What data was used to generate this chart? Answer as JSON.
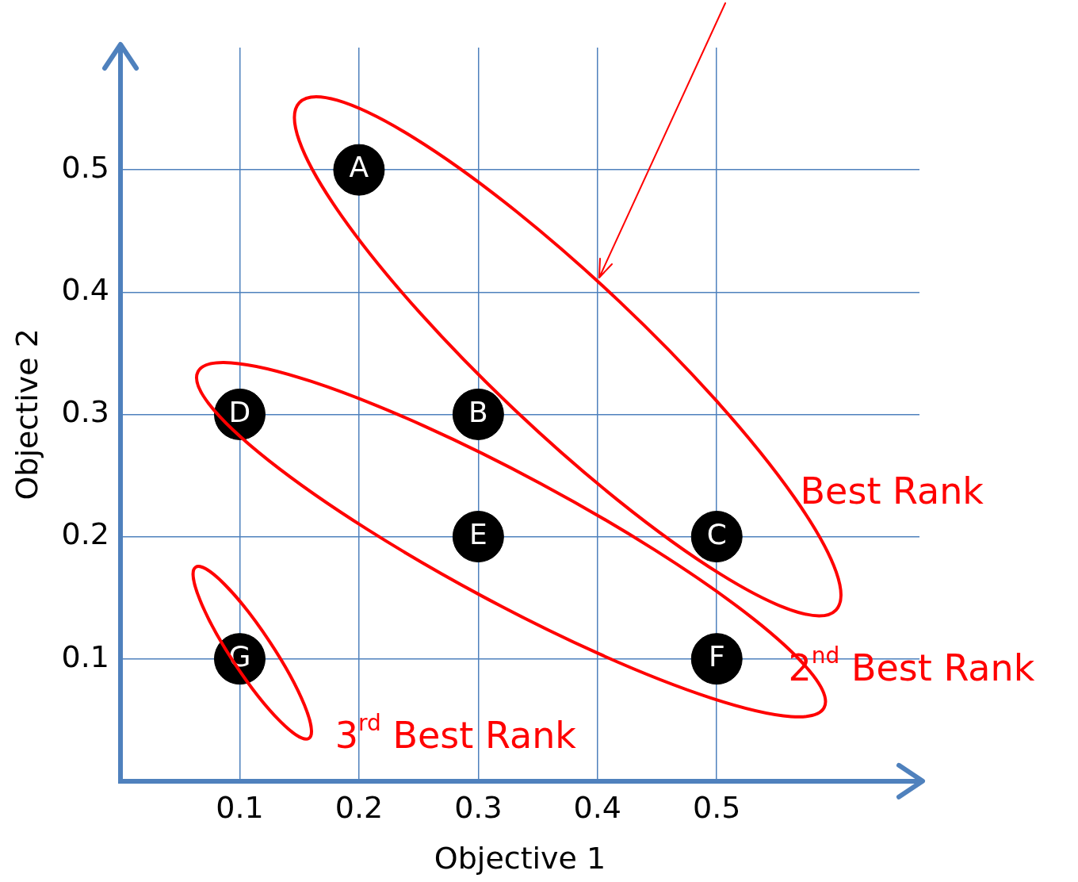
{
  "chart_data": {
    "type": "scatter",
    "xlabel": "Objective 1",
    "ylabel": "Objective 2",
    "series": [
      {
        "color": "#000000",
        "x": [
          0.2,
          0.3,
          0.5,
          0.1,
          0.3,
          0.5,
          0.1
        ],
        "values": [
          0.5,
          0.3,
          0.2,
          0.3,
          0.2,
          0.1,
          0.1
        ]
      }
    ],
    "marker": "circle",
    "xlim": [
      0,
      0.67
    ],
    "ylim": [
      0,
      0.6
    ],
    "xticks": [
      0.1,
      0.2,
      0.3,
      0.4,
      0.5
    ],
    "yticks": [
      0.1,
      0.2,
      0.3,
      0.4,
      0.5
    ],
    "grid": true,
    "annotations": [
      {
        "text": "A",
        "x": 0.2,
        "y": 0.5
      },
      {
        "text": "B",
        "x": 0.3,
        "y": 0.3
      },
      {
        "text": "C",
        "x": 0.5,
        "y": 0.2
      },
      {
        "text": "D",
        "x": 0.1,
        "y": 0.3
      },
      {
        "text": "E",
        "x": 0.3,
        "y": 0.2
      },
      {
        "text": "F",
        "x": 0.5,
        "y": 0.1
      },
      {
        "text": "G",
        "x": 0.1,
        "y": 0.1
      },
      "Best Rank",
      "2$^{nd}$ Best Rank",
      "3$^{rd}$ Best Rank"
    ]
  }
}
